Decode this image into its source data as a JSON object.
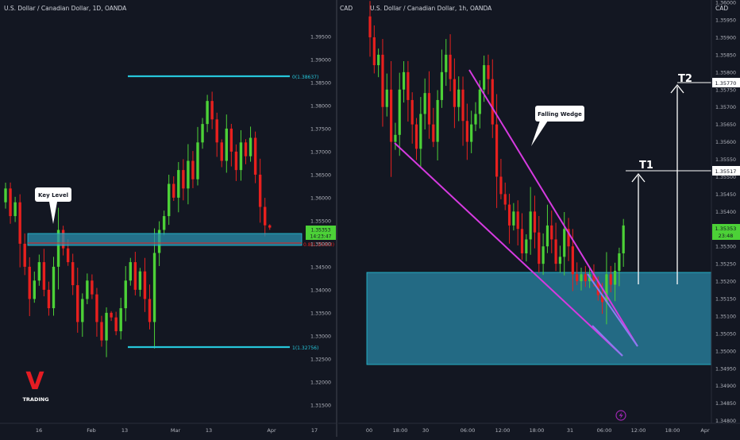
{
  "left_chart": {
    "symbol_title": "U.S. Dollar / Canadian Dollar, 1D, OANDA",
    "x_ticks": [
      "16",
      "Feb",
      "13",
      "Mar",
      "13",
      "Apr",
      "17"
    ],
    "price_ticks": [
      "1.39500",
      "1.39000",
      "1.38500",
      "1.38000",
      "1.37500",
      "1.37000",
      "1.36500",
      "1.36000",
      "1.35500",
      "1.35000",
      "1.34500",
      "1.34000",
      "1.33500",
      "1.33000",
      "1.32500",
      "1.32000",
      "1.31500"
    ],
    "price_badge": {
      "price": "1.35353",
      "countdown": "14:23:47"
    },
    "fib_levels": [
      {
        "label": "0(1.38637)",
        "price": 1.38637
      },
      {
        "label": "1(1.32756)",
        "price": 1.32756
      }
    ],
    "red_line_label": "0.8(1.35003)",
    "key_level_label": "Key Level",
    "logo": {
      "letter": "V",
      "text": "TRADING"
    }
  },
  "right_chart": {
    "symbol_title": "U.S. Dollar / Canadian Dollar, 1h, OANDA",
    "currency": "CAD",
    "x_ticks": [
      "00",
      "18:00",
      "30",
      "06:00",
      "12:00",
      "18:00",
      "31",
      "06:00",
      "12:00",
      "18:00",
      "Apr"
    ],
    "price_ticks": [
      "1.36000",
      "1.35950",
      "1.35900",
      "1.35850",
      "1.35800",
      "1.35750",
      "1.35700",
      "1.35650",
      "1.35600",
      "1.35550",
      "1.35500",
      "1.35450",
      "1.35400",
      "1.35350",
      "1.35300",
      "1.35250",
      "1.35200",
      "1.35150",
      "1.35100",
      "1.35050",
      "1.35000",
      "1.34950",
      "1.34900",
      "1.34850",
      "1.34800"
    ],
    "price_badge": {
      "price": "1.35353",
      "countdown": "23:48"
    },
    "t2": {
      "label": "T2",
      "price_tag": "1.35770"
    },
    "t1": {
      "label": "T1",
      "price_tag": "1.35517"
    },
    "pattern_label": "Falling Wedge"
  },
  "colors": {
    "background": "#131722",
    "bull": "#4cd137",
    "bear": "#e8201e",
    "zone": "#2b8fae",
    "fib": "#26c6da",
    "wedge": "#d63ae0",
    "logo_red": "#e51c23"
  },
  "chart_data": [
    {
      "type": "candlestick",
      "title": "U.S. Dollar / Canadian Dollar, 1D, OANDA",
      "x_ticks": [
        "16",
        "Feb",
        "13",
        "Mar",
        "13",
        "Apr",
        "17"
      ],
      "ylim": [
        1.312,
        1.399
      ],
      "levels": {
        "fib_0": 1.38637,
        "fib_1": 1.32756,
        "fib_0_8": 1.35003,
        "last": 1.35353
      },
      "key_level_zone": [
        1.3496,
        1.3525
      ],
      "closes": [
        1.362,
        1.356,
        1.359,
        1.35,
        1.345,
        1.338,
        1.342,
        1.346,
        1.34,
        1.336,
        1.345,
        1.353,
        1.349,
        1.346,
        1.341,
        1.333,
        1.338,
        1.342,
        1.339,
        1.333,
        1.329,
        1.335,
        1.334,
        1.331,
        1.336,
        1.342,
        1.346,
        1.34,
        1.344,
        1.338,
        1.333,
        1.348,
        1.353,
        1.356,
        1.363,
        1.36,
        1.366,
        1.362,
        1.368,
        1.364,
        1.372,
        1.376,
        1.381,
        1.377,
        1.372,
        1.368,
        1.375,
        1.37,
        1.366,
        1.372,
        1.369,
        1.373,
        1.365,
        1.358,
        1.354,
        1.3535
      ]
    },
    {
      "type": "candlestick",
      "title": "U.S. Dollar / Canadian Dollar, 1h, OANDA",
      "x_ticks": [
        "00",
        "18:00",
        "30",
        "06:00",
        "12:00",
        "18:00",
        "31",
        "06:00",
        "12:00",
        "18:00",
        "Apr"
      ],
      "ylim": [
        1.3478,
        1.3609
      ],
      "zone": [
        1.34945,
        1.35235
      ],
      "targets": {
        "T1": 1.35517,
        "T2": 1.3577
      },
      "last": 1.35353,
      "closes": [
        1.359,
        1.3582,
        1.3585,
        1.357,
        1.3575,
        1.356,
        1.3562,
        1.3575,
        1.358,
        1.3572,
        1.3565,
        1.3558,
        1.3568,
        1.3574,
        1.3565,
        1.356,
        1.3572,
        1.358,
        1.3585,
        1.3578,
        1.357,
        1.3575,
        1.3566,
        1.356,
        1.3565,
        1.3568,
        1.3575,
        1.3582,
        1.3578,
        1.3565,
        1.355,
        1.3545,
        1.3542,
        1.3536,
        1.354,
        1.3535,
        1.3528,
        1.3532,
        1.354,
        1.3534,
        1.3525,
        1.353,
        1.3536,
        1.3532,
        1.3525,
        1.3527,
        1.3535,
        1.353,
        1.3522,
        1.352,
        1.3522,
        1.352,
        1.3522,
        1.352,
        1.3516,
        1.3514,
        1.3522,
        1.3519,
        1.3523,
        1.3528,
        1.3536
      ]
    }
  ]
}
